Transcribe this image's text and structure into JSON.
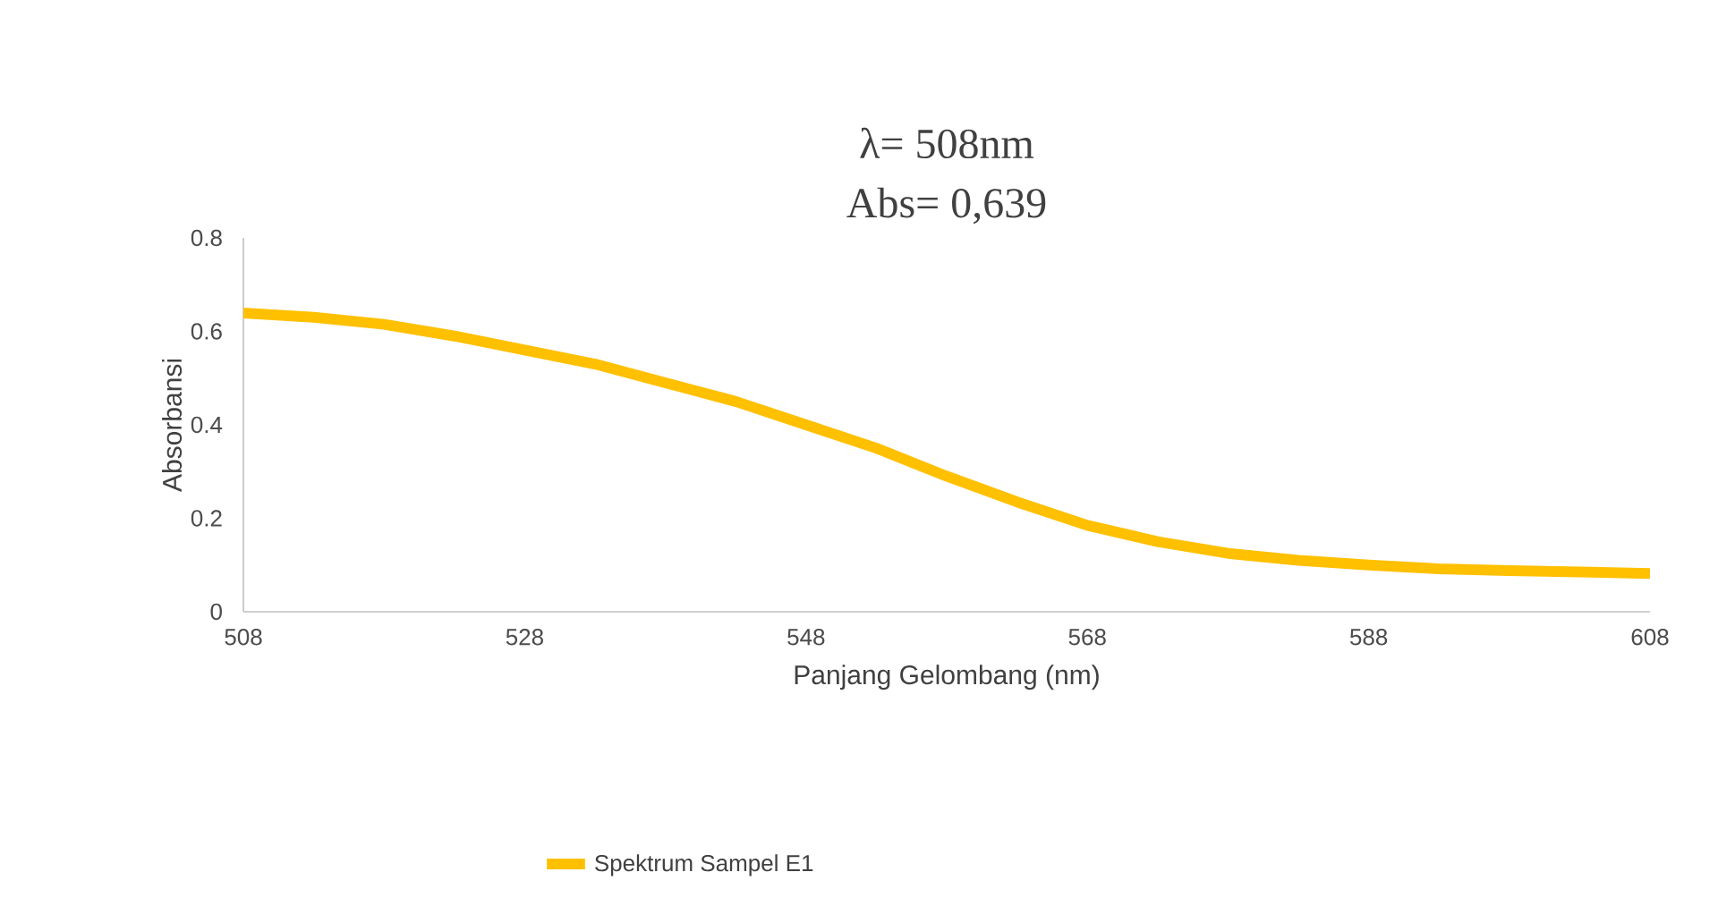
{
  "chart_data": {
    "type": "line",
    "title": "λ= 508nm",
    "subtitle": "Abs= 0,639",
    "xlabel": "Panjang Gelombang (nm)",
    "ylabel": "Absorbansi",
    "xlim": [
      508,
      608
    ],
    "xticks": [
      508,
      528,
      548,
      568,
      588,
      608
    ],
    "ylim": [
      0,
      0.8
    ],
    "yticks": [
      0,
      0.2,
      0.4,
      0.6,
      0.8
    ],
    "grid": false,
    "legend": "bottom",
    "marker": "none",
    "line_style": "solid",
    "x": [
      508,
      513,
      518,
      523,
      528,
      533,
      538,
      543,
      548,
      553,
      558,
      563,
      568,
      573,
      578,
      583,
      588,
      593,
      598,
      603,
      608
    ],
    "series": [
      {
        "name": "Spektrum Sampel E1",
        "color": "#ffc000",
        "values": [
          0.639,
          0.63,
          0.615,
          0.59,
          0.56,
          0.53,
          0.49,
          0.45,
          0.4,
          0.35,
          0.29,
          0.235,
          0.185,
          0.15,
          0.125,
          0.11,
          0.1,
          0.092,
          0.088,
          0.085,
          0.082
        ]
      }
    ]
  }
}
